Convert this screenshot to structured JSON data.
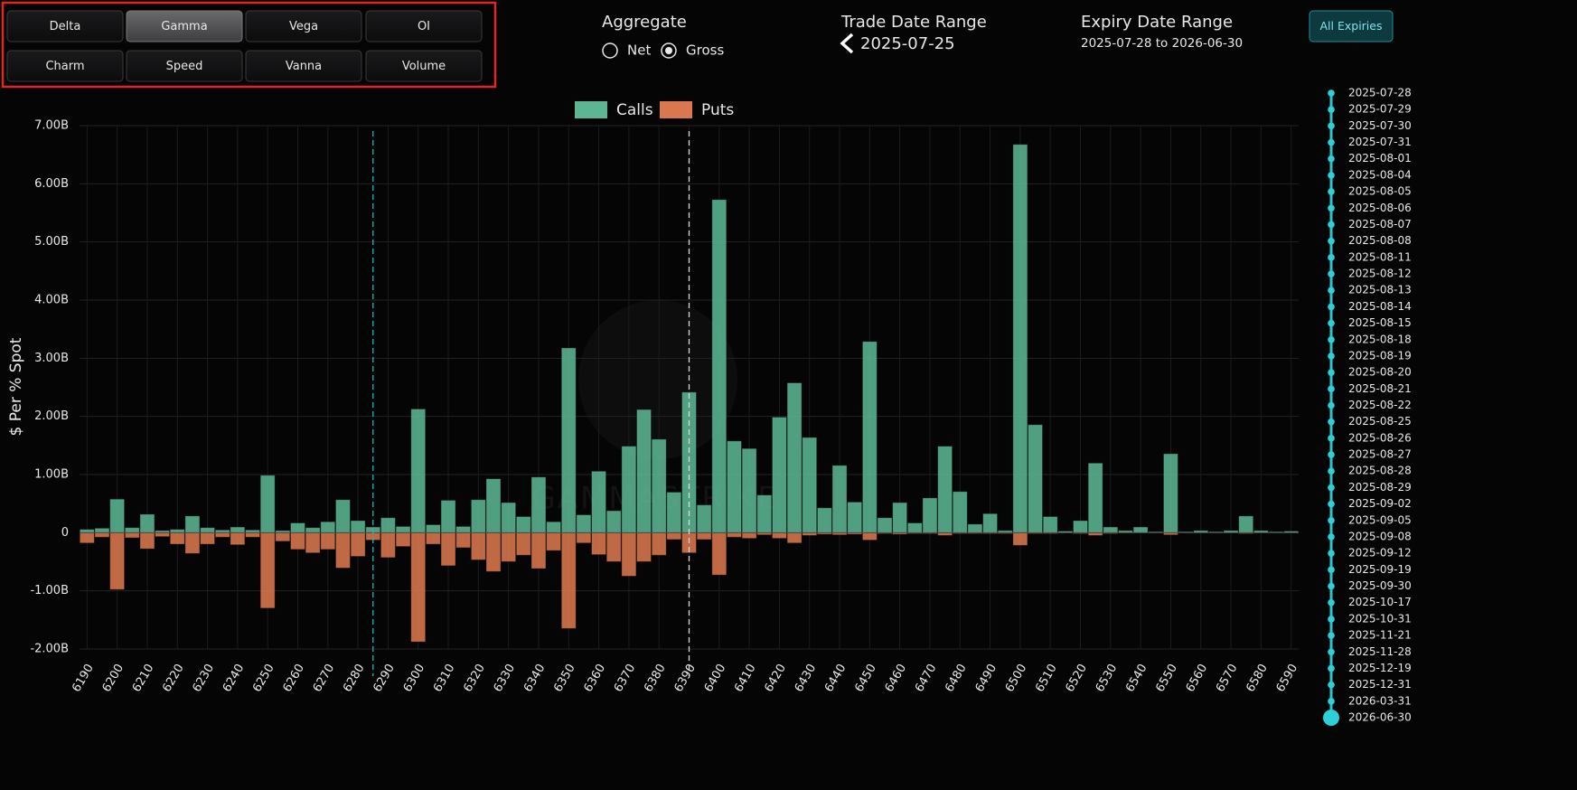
{
  "controls": {
    "metrics": [
      "Delta",
      "Gamma",
      "Vega",
      "OI",
      "Charm",
      "Speed",
      "Vanna",
      "Volume"
    ],
    "selected_metric": 1,
    "aggregate": {
      "title": "Aggregate",
      "options": [
        "Net",
        "Gross"
      ],
      "selected": 1
    },
    "trade_date_range": {
      "title": "Trade Date Range",
      "value": "2025-07-25"
    },
    "expiry_date_range": {
      "title": "Expiry Date Range",
      "value": "2025-07-28 to 2026-06-30"
    },
    "all_expiries": "All Expiries"
  },
  "expiries": [
    "2025-07-28",
    "2025-07-29",
    "2025-07-30",
    "2025-07-31",
    "2025-08-01",
    "2025-08-04",
    "2025-08-05",
    "2025-08-06",
    "2025-08-07",
    "2025-08-08",
    "2025-08-11",
    "2025-08-12",
    "2025-08-13",
    "2025-08-14",
    "2025-08-15",
    "2025-08-18",
    "2025-08-19",
    "2025-08-20",
    "2025-08-21",
    "2025-08-22",
    "2025-08-25",
    "2025-08-26",
    "2025-08-27",
    "2025-08-28",
    "2025-08-29",
    "2025-09-02",
    "2025-09-05",
    "2025-09-08",
    "2025-09-12",
    "2025-09-19",
    "2025-09-30",
    "2025-10-17",
    "2025-10-31",
    "2025-11-21",
    "2025-11-28",
    "2025-12-19",
    "2025-12-31",
    "2026-03-31",
    "2026-06-30"
  ],
  "chart_data": {
    "type": "bar",
    "y_label": "$ Per % Spot",
    "watermark": "GAMMASTRIKE",
    "x": [
      6190,
      6195,
      6200,
      6205,
      6210,
      6215,
      6220,
      6225,
      6230,
      6235,
      6240,
      6245,
      6250,
      6255,
      6260,
      6265,
      6270,
      6275,
      6280,
      6285,
      6290,
      6295,
      6300,
      6305,
      6310,
      6315,
      6320,
      6325,
      6330,
      6335,
      6340,
      6345,
      6350,
      6355,
      6360,
      6365,
      6370,
      6375,
      6380,
      6385,
      6390,
      6395,
      6400,
      6405,
      6410,
      6415,
      6420,
      6425,
      6430,
      6435,
      6440,
      6445,
      6450,
      6455,
      6460,
      6465,
      6470,
      6475,
      6480,
      6485,
      6490,
      6495,
      6500,
      6505,
      6510,
      6515,
      6520,
      6525,
      6530,
      6535,
      6540,
      6545,
      6550,
      6555,
      6560,
      6565,
      6570,
      6575,
      6580,
      6585,
      6590
    ],
    "series": [
      {
        "name": "Calls",
        "color": "#5cb593",
        "values": [
          50000000.0,
          70000000.0,
          570000000.0,
          80000000.0,
          310000000.0,
          30000000.0,
          50000000.0,
          280000000.0,
          80000000.0,
          40000000.0,
          90000000.0,
          40000000.0,
          980000000.0,
          30000000.0,
          160000000.0,
          80000000.0,
          180000000.0,
          560000000.0,
          200000000.0,
          90000000.0,
          250000000.0,
          100000000.0,
          2120000000.0,
          130000000.0,
          550000000.0,
          100000000.0,
          560000000.0,
          920000000.0,
          510000000.0,
          270000000.0,
          950000000.0,
          180000000.0,
          3170000000.0,
          300000000.0,
          1050000000.0,
          370000000.0,
          1480000000.0,
          2110000000.0,
          1600000000.0,
          690000000.0,
          2410000000.0,
          470000000.0,
          5720000000.0,
          1570000000.0,
          1440000000.0,
          640000000.0,
          1980000000.0,
          2570000000.0,
          1630000000.0,
          420000000.0,
          1150000000.0,
          520000000.0,
          3280000000.0,
          250000000.0,
          510000000.0,
          160000000.0,
          590000000.0,
          1480000000.0,
          700000000.0,
          140000000.0,
          320000000.0,
          30000000.0,
          6670000000.0,
          1850000000.0,
          270000000.0,
          20000000.0,
          200000000.0,
          1190000000.0,
          90000000.0,
          30000000.0,
          90000000.0,
          10000000.0,
          1350000000.0,
          10000000.0,
          30000000.0,
          10000000.0,
          30000000.0,
          280000000.0,
          30000000.0,
          10000000.0,
          20000000.0
        ]
      },
      {
        "name": "Puts",
        "color": "#d9774f",
        "values": [
          -170000000.0,
          -70000000.0,
          -970000000.0,
          -80000000.0,
          -270000000.0,
          -60000000.0,
          -190000000.0,
          -350000000.0,
          -190000000.0,
          -70000000.0,
          -200000000.0,
          -70000000.0,
          -1290000000.0,
          -140000000.0,
          -280000000.0,
          -340000000.0,
          -280000000.0,
          -600000000.0,
          -400000000.0,
          -120000000.0,
          -420000000.0,
          -230000000.0,
          -1870000000.0,
          -190000000.0,
          -560000000.0,
          -250000000.0,
          -460000000.0,
          -660000000.0,
          -490000000.0,
          -380000000.0,
          -610000000.0,
          -300000000.0,
          -1640000000.0,
          -170000000.0,
          -370000000.0,
          -490000000.0,
          -740000000.0,
          -490000000.0,
          -380000000.0,
          -110000000.0,
          -340000000.0,
          -110000000.0,
          -720000000.0,
          -70000000.0,
          -90000000.0,
          -30000000.0,
          -90000000.0,
          -170000000.0,
          -40000000.0,
          -20000000.0,
          -30000000.0,
          -20000000.0,
          -120000000.0,
          -10000000.0,
          -20000000.0,
          -10000000.0,
          -10000000.0,
          -40000000.0,
          -10000000.0,
          -10000000.0,
          -10000000.0,
          -10000000.0,
          -210000000.0,
          -10000000.0,
          -10000000.0,
          0,
          -10000000.0,
          -40000000.0,
          -10000000.0,
          0,
          0,
          0,
          -30000000.0,
          0,
          0,
          0,
          0,
          -10000000.0,
          0,
          0,
          0
        ]
      }
    ],
    "xlim": [
      6187.5,
      6592.5
    ],
    "xticks": [
      6190,
      6200,
      6210,
      6220,
      6230,
      6240,
      6250,
      6260,
      6270,
      6280,
      6290,
      6300,
      6310,
      6320,
      6330,
      6340,
      6350,
      6360,
      6370,
      6380,
      6390,
      6400,
      6410,
      6420,
      6430,
      6440,
      6450,
      6460,
      6470,
      6480,
      6490,
      6500,
      6510,
      6520,
      6530,
      6540,
      6550,
      6560,
      6570,
      6580,
      6590
    ],
    "ylim": [
      -2000000000.0,
      7000000000.0
    ],
    "yticks": [
      {
        "value": -2000000000.0,
        "label": "-2.00B"
      },
      {
        "value": -1000000000.0,
        "label": "-1.00B"
      },
      0,
      {
        "value": 1000000000.0,
        "label": "1.00B"
      },
      {
        "value": 2000000000.0,
        "label": "2.00B"
      },
      {
        "value": 3000000000.0,
        "label": "3.00B"
      },
      {
        "value": 4000000000.0,
        "label": "4.00B"
      },
      {
        "value": 5000000000.0,
        "label": "5.00B"
      },
      {
        "value": 6000000000.0,
        "label": "6.00B"
      },
      {
        "value": 7000000000.0,
        "label": "7.00B"
      }
    ],
    "grid": true,
    "vlines": [
      {
        "value": 6285,
        "color": "#1fb7bf"
      },
      {
        "value": 6390,
        "color": "#d8d8d8"
      }
    ]
  }
}
